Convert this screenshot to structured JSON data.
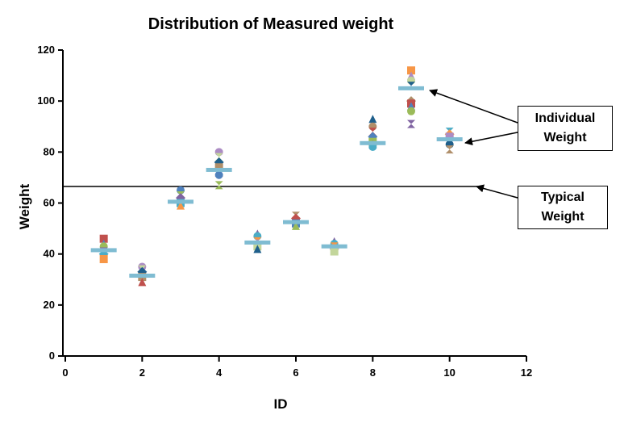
{
  "chart_data": {
    "type": "scatter",
    "title": "Distribution of Measured weight",
    "xlabel": "ID",
    "ylabel": "Weight",
    "xlim": [
      0,
      12
    ],
    "ylim": [
      0,
      120
    ],
    "xticks": [
      "0",
      "2",
      "4",
      "6",
      "8",
      "10",
      "12"
    ],
    "yticks": [
      "0",
      "20",
      "40",
      "60",
      "80",
      "100",
      "120"
    ],
    "grid": false,
    "reference_line": {
      "value": 66.5,
      "label": "Typical Weight",
      "label_lines": [
        "Typical",
        "Weight"
      ]
    },
    "individual_callout": {
      "label": "Individual Weight",
      "label_lines": [
        "Individual",
        "Weight"
      ]
    },
    "means": [
      {
        "x": 1,
        "y": 41.5
      },
      {
        "x": 2,
        "y": 31.5
      },
      {
        "x": 3,
        "y": 60.5
      },
      {
        "x": 4,
        "y": 73
      },
      {
        "x": 5,
        "y": 44.5
      },
      {
        "x": 6,
        "y": 52.5
      },
      {
        "x": 7,
        "y": 43
      },
      {
        "x": 8,
        "y": 83.5
      },
      {
        "x": 9,
        "y": 105
      },
      {
        "x": 10,
        "y": 85
      }
    ],
    "points": [
      {
        "x": 1,
        "values": [
          46,
          44,
          43,
          41,
          40,
          38
        ]
      },
      {
        "x": 2,
        "values": [
          35,
          34,
          33,
          31,
          29
        ]
      },
      {
        "x": 3,
        "values": [
          65,
          63,
          62,
          60,
          59
        ]
      },
      {
        "x": 4,
        "values": [
          80,
          78,
          76,
          74,
          72,
          71,
          67
        ]
      },
      {
        "x": 5,
        "values": [
          48,
          47,
          45,
          44,
          43,
          42
        ]
      },
      {
        "x": 6,
        "values": [
          55,
          54,
          52,
          51
        ]
      },
      {
        "x": 7,
        "values": [
          45,
          44,
          43,
          42,
          41
        ]
      },
      {
        "x": 8,
        "values": [
          93,
          90,
          88,
          86,
          84,
          83,
          82
        ]
      },
      {
        "x": 9,
        "values": [
          112,
          110,
          108,
          106,
          100,
          99,
          98,
          96,
          91
        ]
      },
      {
        "x": 10,
        "values": [
          88,
          87,
          86,
          84,
          83,
          81
        ]
      }
    ],
    "marker_colors": [
      "#c0504d",
      "#4f81bd",
      "#9bbb59",
      "#8064a2",
      "#4bacc6",
      "#f79646",
      "#ac8cc4",
      "#c3d69b",
      "#1f5f8b",
      "#b08f6a"
    ],
    "mean_color": "#7fbcd2"
  }
}
